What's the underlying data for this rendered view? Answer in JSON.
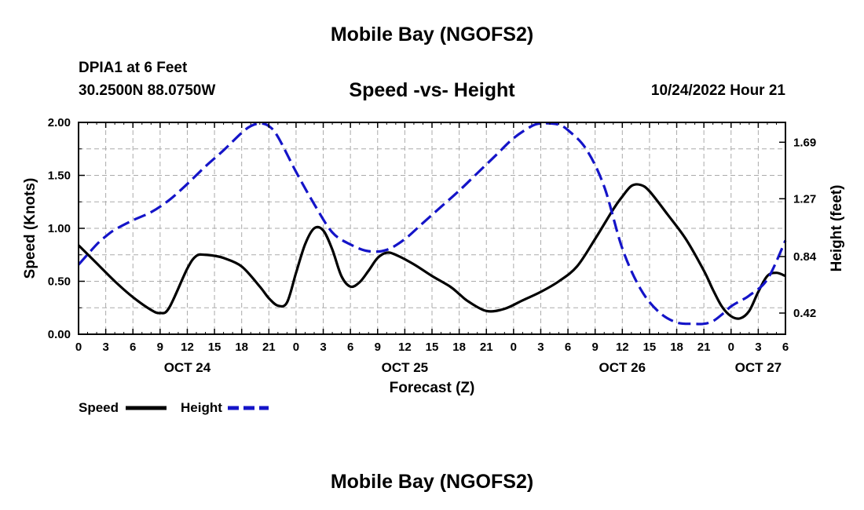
{
  "header": {
    "title": "Mobile Bay (NGOFS2)",
    "station": "DPIA1 at 6 Feet",
    "coordinates": "30.2500N  88.0750W",
    "subtitle": "Speed -vs- Height",
    "datetime": "10/24/2022 Hour 21"
  },
  "footer": {
    "title": "Mobile Bay (NGOFS2)"
  },
  "chart_data": {
    "type": "line",
    "title": "Speed -vs- Height",
    "xlabel": "Forecast (Z)",
    "ylabel_left": "Speed (Knots)",
    "ylabel_right": "Height (feet)",
    "x_range_hours": [
      0,
      78
    ],
    "x_ticks": [
      "0",
      "3",
      "6",
      "9",
      "12",
      "15",
      "18",
      "21",
      "0",
      "3",
      "6",
      "9",
      "12",
      "15",
      "18",
      "21",
      "0",
      "3",
      "6",
      "9",
      "12",
      "15",
      "18",
      "21",
      "0",
      "3",
      "6"
    ],
    "day_labels": [
      {
        "label": "OCT 24",
        "hour": 12
      },
      {
        "label": "OCT 25",
        "hour": 36
      },
      {
        "label": "OCT 26",
        "hour": 60
      },
      {
        "label": "OCT 27",
        "hour": 75
      }
    ],
    "y_left": {
      "range": [
        0,
        2.0
      ],
      "ticks": [
        "0.00",
        "0.50",
        "1.00",
        "1.50",
        "2.00"
      ]
    },
    "y_right": {
      "range": [
        0.2625,
        1.8375
      ],
      "ticks": [
        "0.42",
        "0.84",
        "1.27",
        "1.69"
      ]
    },
    "grid": true,
    "colors": {
      "speed": "#000000",
      "height": "#1414c8",
      "grid": "#aaaaaa"
    },
    "series": [
      {
        "name": "Speed",
        "axis": "left",
        "style": "solid",
        "x": [
          0,
          2,
          4,
          6,
          8,
          9,
          10,
          12,
          13,
          14,
          15,
          16,
          18,
          20,
          21,
          22,
          23,
          24,
          25,
          26,
          27,
          28,
          29,
          30,
          31,
          32,
          33,
          34,
          35,
          37,
          39,
          41,
          42,
          43,
          45,
          47,
          49,
          51,
          53,
          55,
          57,
          59,
          60,
          61,
          62,
          63,
          65,
          67,
          69,
          70,
          71,
          72,
          73,
          74,
          75,
          76,
          77,
          78
        ],
        "values": [
          0.84,
          0.67,
          0.5,
          0.35,
          0.23,
          0.2,
          0.25,
          0.62,
          0.74,
          0.75,
          0.74,
          0.72,
          0.64,
          0.45,
          0.34,
          0.27,
          0.3,
          0.58,
          0.85,
          1.0,
          0.98,
          0.8,
          0.55,
          0.45,
          0.49,
          0.6,
          0.72,
          0.77,
          0.75,
          0.66,
          0.55,
          0.45,
          0.38,
          0.31,
          0.22,
          0.24,
          0.32,
          0.4,
          0.5,
          0.64,
          0.9,
          1.18,
          1.3,
          1.4,
          1.41,
          1.35,
          1.13,
          0.9,
          0.6,
          0.42,
          0.26,
          0.17,
          0.15,
          0.22,
          0.4,
          0.55,
          0.58,
          0.55
        ]
      },
      {
        "name": "Height",
        "axis": "right",
        "style": "dashed",
        "x": [
          0,
          2,
          3,
          4,
          6,
          8,
          10,
          12,
          14,
          16,
          18,
          19,
          20,
          21,
          22,
          24,
          26,
          28,
          30,
          32,
          34,
          36,
          38,
          40,
          42,
          44,
          46,
          48,
          50,
          51,
          52,
          53,
          54,
          56,
          58,
          60,
          62,
          64,
          66,
          68,
          69,
          70,
          71,
          72,
          73,
          74,
          76,
          78
        ],
        "values": [
          0.78,
          0.93,
          0.99,
          1.04,
          1.11,
          1.17,
          1.26,
          1.38,
          1.51,
          1.63,
          1.76,
          1.81,
          1.83,
          1.81,
          1.73,
          1.47,
          1.23,
          1.02,
          0.93,
          0.88,
          0.89,
          0.97,
          1.09,
          1.21,
          1.33,
          1.46,
          1.59,
          1.72,
          1.81,
          1.83,
          1.83,
          1.82,
          1.78,
          1.64,
          1.36,
          0.9,
          0.6,
          0.43,
          0.35,
          0.34,
          0.34,
          0.36,
          0.41,
          0.47,
          0.51,
          0.55,
          0.67,
          0.96
        ]
      }
    ],
    "legend": [
      {
        "label": "Speed",
        "style": "solid",
        "color": "#000000"
      },
      {
        "label": "Height",
        "style": "dashed",
        "color": "#1414c8"
      }
    ]
  }
}
